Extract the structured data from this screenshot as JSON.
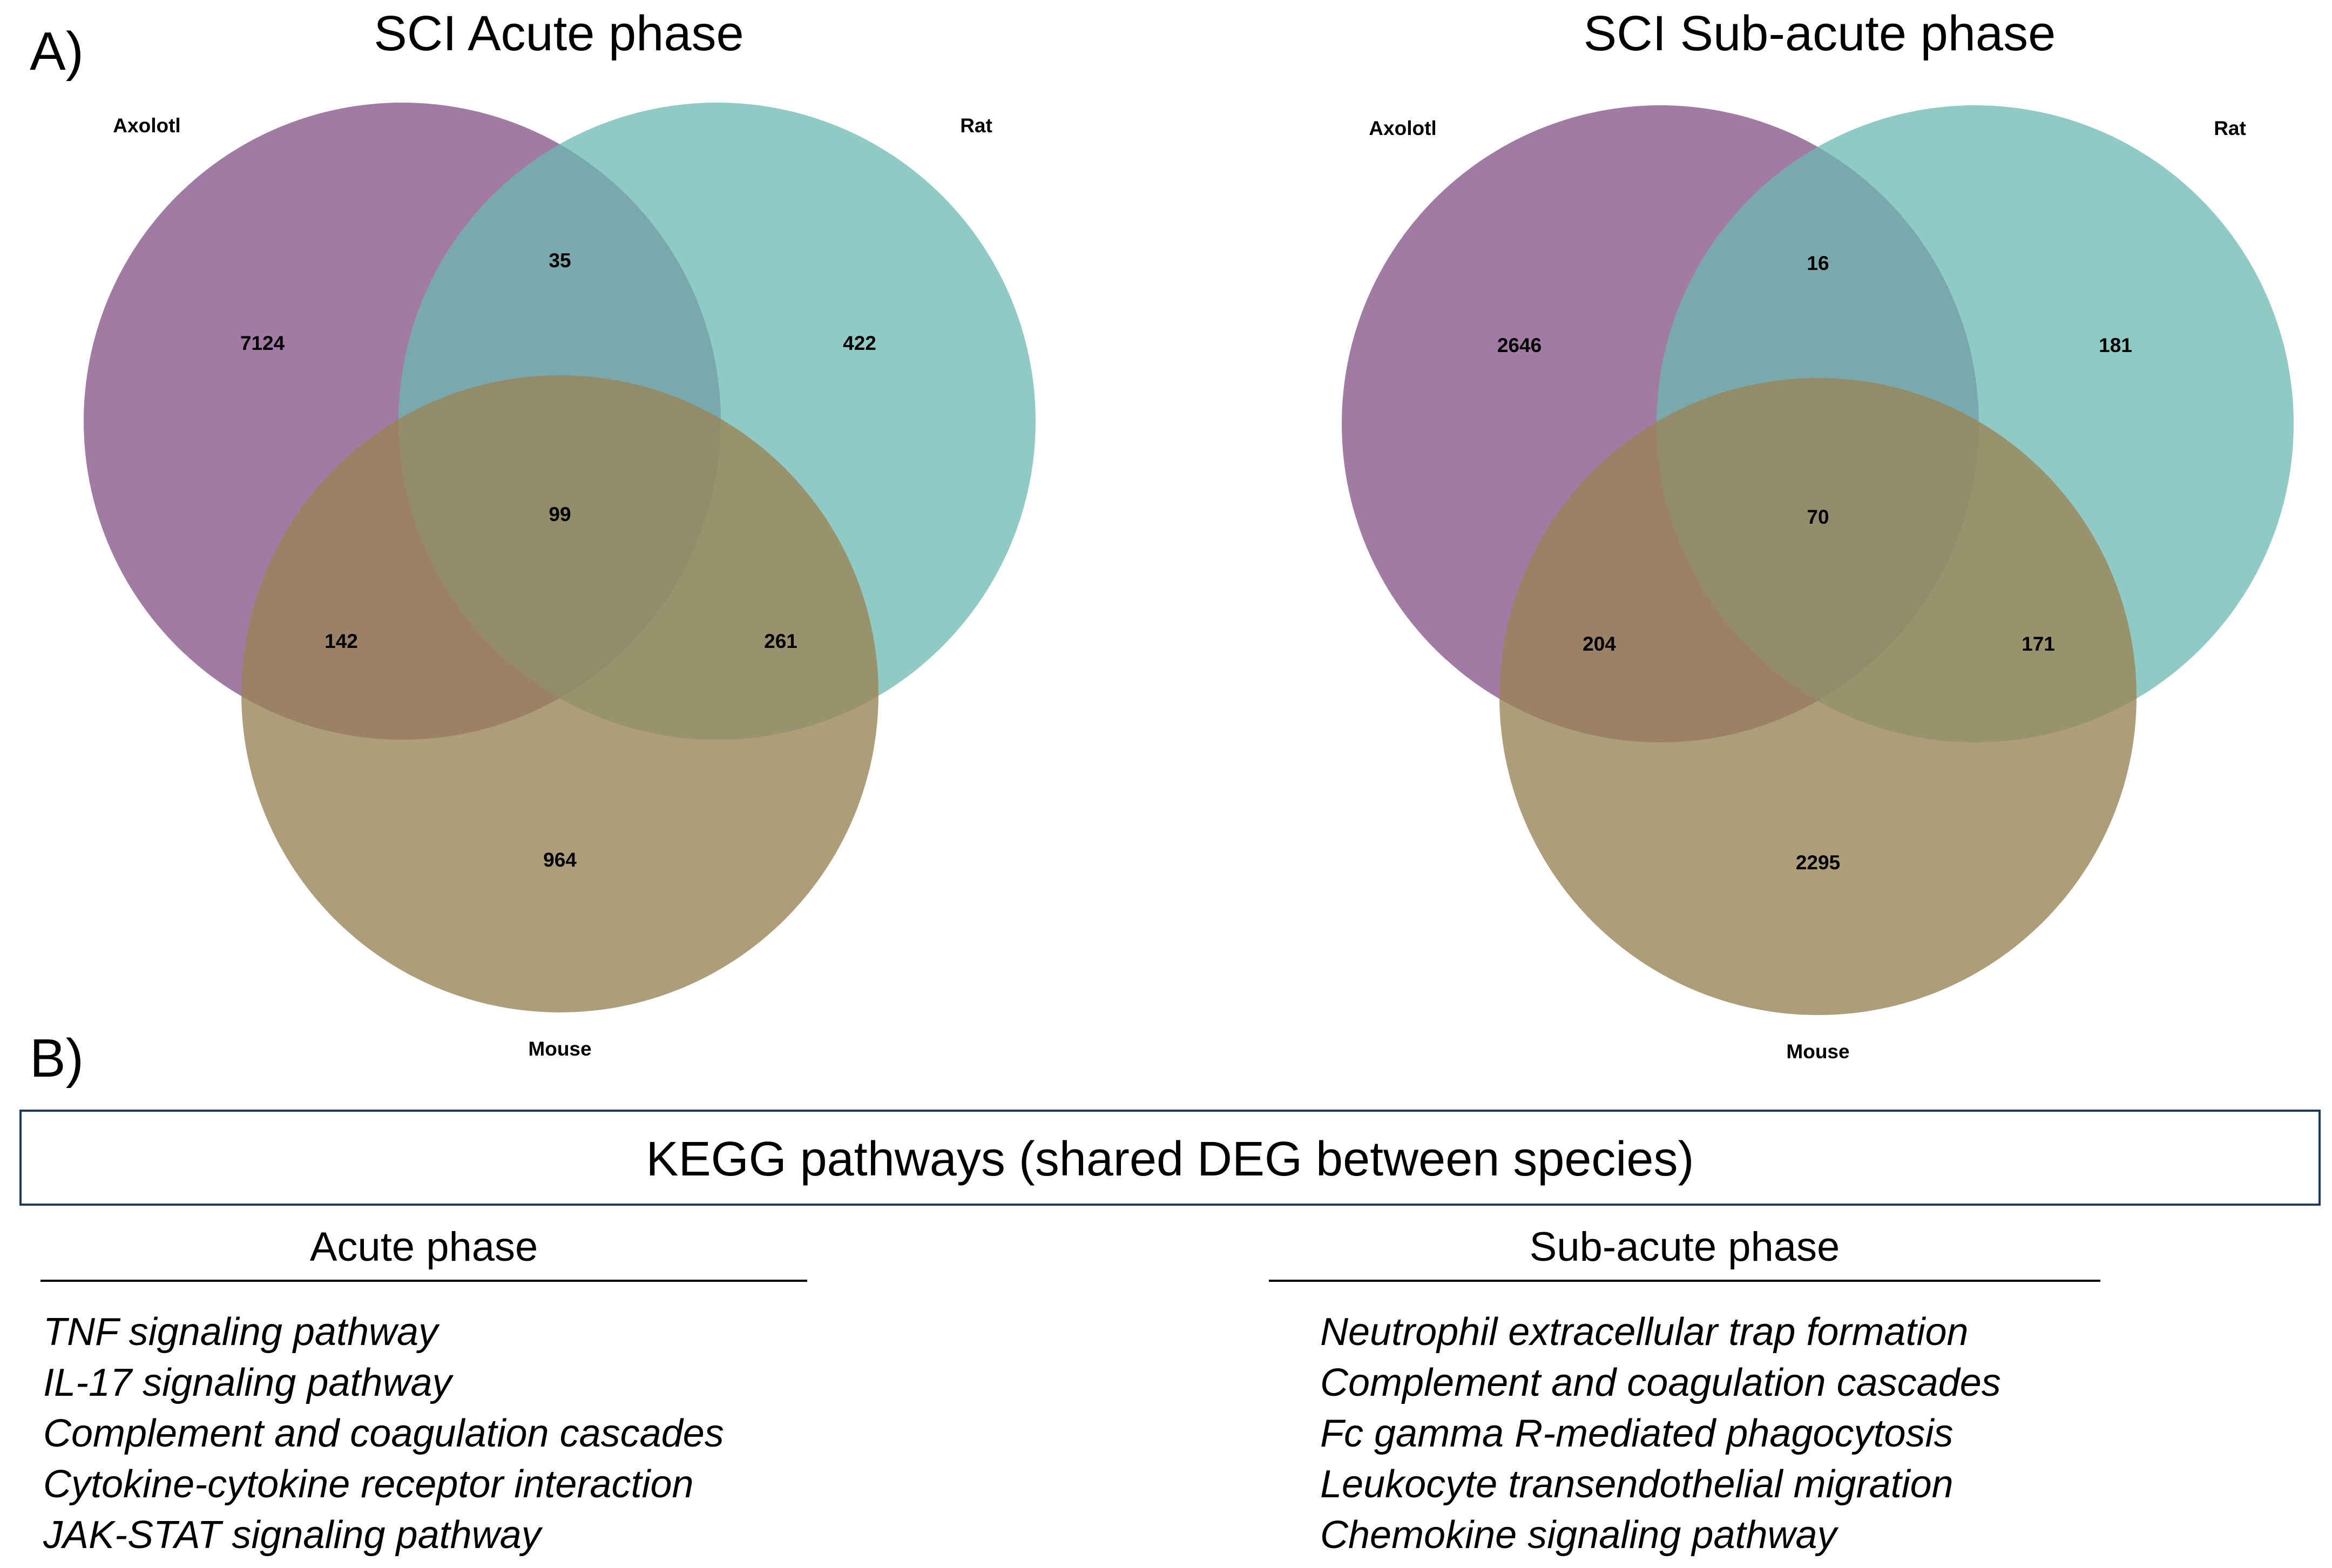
{
  "panels": {
    "a_label": "A)",
    "b_label": "B)"
  },
  "venn": [
    {
      "title": "SCI Acute phase",
      "labels": {
        "axolotl": "Axolotl",
        "rat": "Rat",
        "mouse": "Mouse"
      },
      "regions": {
        "axolotl_only": "7124",
        "axolotl_rat": "35",
        "rat_only": "422",
        "all_three": "99",
        "axolotl_mouse": "142",
        "rat_mouse": "261",
        "mouse_only": "964"
      }
    },
    {
      "title": "SCI Sub-acute phase",
      "labels": {
        "axolotl": "Axolotl",
        "rat": "Rat",
        "mouse": "Mouse"
      },
      "regions": {
        "axolotl_only": "2646",
        "axolotl_rat": "16",
        "rat_only": "181",
        "all_three": "70",
        "axolotl_mouse": "204",
        "rat_mouse": "171",
        "mouse_only": "2295"
      }
    }
  ],
  "colors": {
    "axolotl": "#8b5a8f",
    "rat": "#6bb8b0",
    "mouse": "#9a8558"
  },
  "kegg": {
    "title": "KEGG pathways (shared DEG between species)",
    "acute": {
      "header": "Acute phase",
      "items": [
        "TNF signaling pathway",
        "IL-17 signaling pathway",
        "Complement and coagulation cascades",
        "Cytokine-cytokine receptor interaction",
        "JAK-STAT signaling pathway"
      ]
    },
    "subacute": {
      "header": "Sub-acute phase",
      "items": [
        "Neutrophil extracellular trap formation",
        "Complement and coagulation cascades",
        "Fc gamma R-mediated phagocytosis",
        "Leukocyte transendothelial migration",
        "Chemokine signaling pathway"
      ]
    }
  }
}
